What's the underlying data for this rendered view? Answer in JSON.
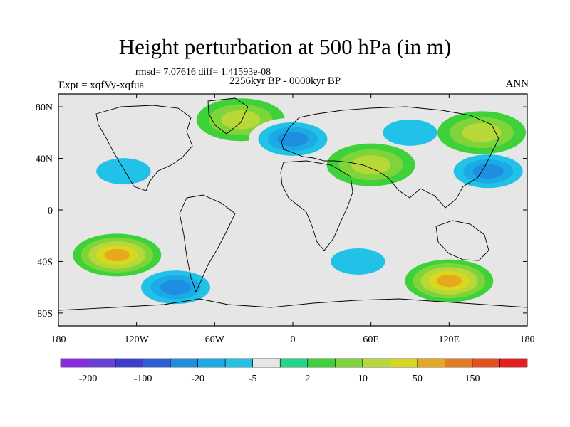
{
  "header": {
    "title": "Height perturbation at 500 hPa (in m)",
    "stats": "rmsd= 7.07616 diff= 1.41593e-08",
    "period": "2256kyr BP - 0000kyr BP",
    "expt": "Expt = xqfVy-xqfua",
    "season": "ANN"
  },
  "map": {
    "lon_range": [
      -180,
      180
    ],
    "lat_range": [
      -90,
      90
    ],
    "lon_ticks": [
      {
        "value": -180,
        "label": "180"
      },
      {
        "value": -120,
        "label": "120W"
      },
      {
        "value": -60,
        "label": "60W"
      },
      {
        "value": 0,
        "label": "0"
      },
      {
        "value": 60,
        "label": "60E"
      },
      {
        "value": 120,
        "label": "120E"
      },
      {
        "value": 180,
        "label": "180"
      }
    ],
    "lat_ticks": [
      {
        "value": 80,
        "label": "80N"
      },
      {
        "value": 40,
        "label": "40N"
      },
      {
        "value": 0,
        "label": "0"
      },
      {
        "value": -40,
        "label": "40S"
      },
      {
        "value": -80,
        "label": "80S"
      }
    ],
    "anomalies": [
      {
        "lon": -130,
        "lat": 30,
        "value": -5
      },
      {
        "lon": -40,
        "lat": 70,
        "value": 10
      },
      {
        "lon": 0,
        "lat": 55,
        "value": -20
      },
      {
        "lon": 90,
        "lat": 60,
        "value": -5
      },
      {
        "lon": 150,
        "lat": 30,
        "value": -20
      },
      {
        "lon": 145,
        "lat": 60,
        "value": 10
      },
      {
        "lon": 60,
        "lat": 35,
        "value": 10
      },
      {
        "lon": -135,
        "lat": -35,
        "value": 50
      },
      {
        "lon": -90,
        "lat": -60,
        "value": -20
      },
      {
        "lon": 50,
        "lat": -40,
        "value": -5
      },
      {
        "lon": 120,
        "lat": -55,
        "value": 50
      }
    ]
  },
  "colorbar": {
    "colors": [
      "#8a2be2",
      "#6a3fd6",
      "#3c3ccf",
      "#2a5fd8",
      "#1e8fe0",
      "#1aaae6",
      "#22c2e8",
      "#e6e6e6",
      "#1fd68b",
      "#3ed13a",
      "#7fd43a",
      "#b8d83a",
      "#d8d81e",
      "#e6a81e",
      "#e67a1e",
      "#e6501e",
      "#e61e1e"
    ],
    "labels": [
      {
        "index": 1,
        "text": "-200"
      },
      {
        "index": 3,
        "text": "-100"
      },
      {
        "index": 5,
        "text": "-20"
      },
      {
        "index": 7,
        "text": "-5"
      },
      {
        "index": 9,
        "text": "2"
      },
      {
        "index": 11,
        "text": "10"
      },
      {
        "index": 13,
        "text": "50"
      },
      {
        "index": 15,
        "text": "150"
      }
    ]
  }
}
